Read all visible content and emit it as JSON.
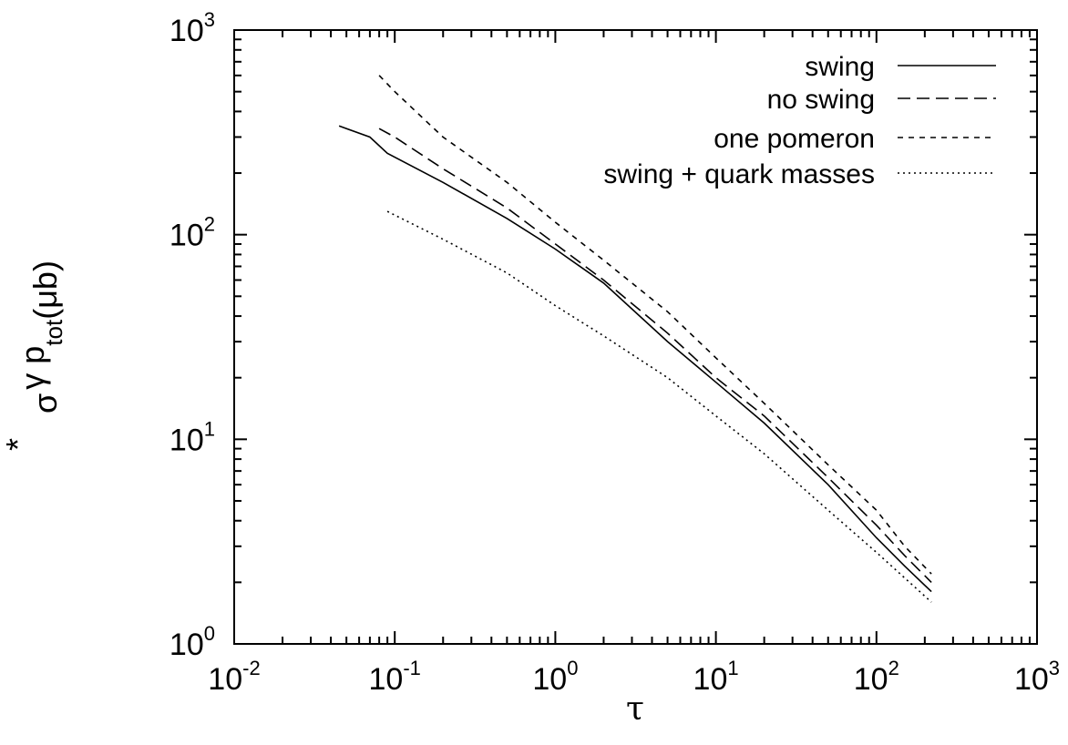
{
  "chart_data": {
    "type": "line",
    "x_scale": "log",
    "y_scale": "log",
    "xlim": [
      0.01,
      1000
    ],
    "ylim": [
      1,
      1000
    ],
    "xlabel": "τ",
    "ylabel": {
      "base": "σ",
      "superscript_star": "*",
      "gamma_p": "γ p",
      "subscript": "tot",
      "unit": "(μb)"
    },
    "x_ticks": [
      {
        "base": "10",
        "exp": "-2",
        "value": 0.01
      },
      {
        "base": "10",
        "exp": "-1",
        "value": 0.1
      },
      {
        "base": "10",
        "exp": "0",
        "value": 1
      },
      {
        "base": "10",
        "exp": "1",
        "value": 10
      },
      {
        "base": "10",
        "exp": "2",
        "value": 100
      },
      {
        "base": "10",
        "exp": "3",
        "value": 1000
      }
    ],
    "y_ticks": [
      {
        "base": "10",
        "exp": "0",
        "value": 1
      },
      {
        "base": "10",
        "exp": "1",
        "value": 10
      },
      {
        "base": "10",
        "exp": "2",
        "value": 100
      },
      {
        "base": "10",
        "exp": "3",
        "value": 1000
      }
    ],
    "legend_position": "top-right",
    "series": [
      {
        "name": "swing",
        "style": "solid",
        "points": [
          [
            0.045,
            340
          ],
          [
            0.07,
            300
          ],
          [
            0.09,
            250
          ],
          [
            0.2,
            180
          ],
          [
            0.5,
            120
          ],
          [
            1,
            85
          ],
          [
            2,
            58
          ],
          [
            5,
            30
          ],
          [
            10,
            19
          ],
          [
            20,
            12
          ],
          [
            50,
            6
          ],
          [
            100,
            3.3
          ],
          [
            150,
            2.4
          ],
          [
            220,
            1.8
          ]
        ]
      },
      {
        "name": "no swing",
        "style": "dashed",
        "points": [
          [
            0.08,
            330
          ],
          [
            0.1,
            300
          ],
          [
            0.2,
            210
          ],
          [
            0.5,
            135
          ],
          [
            1,
            90
          ],
          [
            2,
            60
          ],
          [
            5,
            33
          ],
          [
            10,
            20
          ],
          [
            20,
            13
          ],
          [
            50,
            6.5
          ],
          [
            100,
            3.8
          ],
          [
            150,
            2.7
          ],
          [
            220,
            2.0
          ]
        ]
      },
      {
        "name": "one pomeron",
        "style": "short-dashed",
        "points": [
          [
            0.08,
            600
          ],
          [
            0.1,
            500
          ],
          [
            0.2,
            300
          ],
          [
            0.5,
            180
          ],
          [
            1,
            115
          ],
          [
            2,
            75
          ],
          [
            5,
            42
          ],
          [
            10,
            25
          ],
          [
            20,
            15
          ],
          [
            50,
            7.5
          ],
          [
            100,
            4.5
          ],
          [
            150,
            3.0
          ],
          [
            220,
            2.2
          ]
        ]
      },
      {
        "name": "swing + quark masses",
        "style": "dotted",
        "points": [
          [
            0.09,
            130
          ],
          [
            0.2,
            95
          ],
          [
            0.5,
            65
          ],
          [
            1,
            45
          ],
          [
            2,
            32
          ],
          [
            5,
            20
          ],
          [
            10,
            13
          ],
          [
            20,
            8.5
          ],
          [
            50,
            4.5
          ],
          [
            100,
            2.8
          ],
          [
            150,
            2.1
          ],
          [
            220,
            1.6
          ]
        ]
      }
    ]
  }
}
